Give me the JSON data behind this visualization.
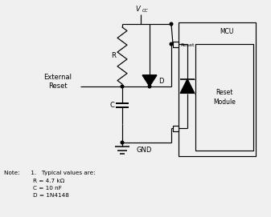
{
  "bg_color": "#f0f0f0",
  "line_color": "#000000",
  "vcc_label": "V",
  "vcc_sub": "CC",
  "gnd_label": "GND",
  "r_label": "R",
  "c_label": "C",
  "d_label": "D",
  "reset_label": "Reset",
  "mcu_label": "MCU",
  "reset_module_label": "Reset\nModule",
  "external_reset_label": "External\nReset",
  "note_line1": "Note:      1.   Typical values are:",
  "note_line2": "                R = 4.7 kΩ",
  "note_line3": "                C = 10 nF",
  "note_line4": "                D = 1N4148"
}
